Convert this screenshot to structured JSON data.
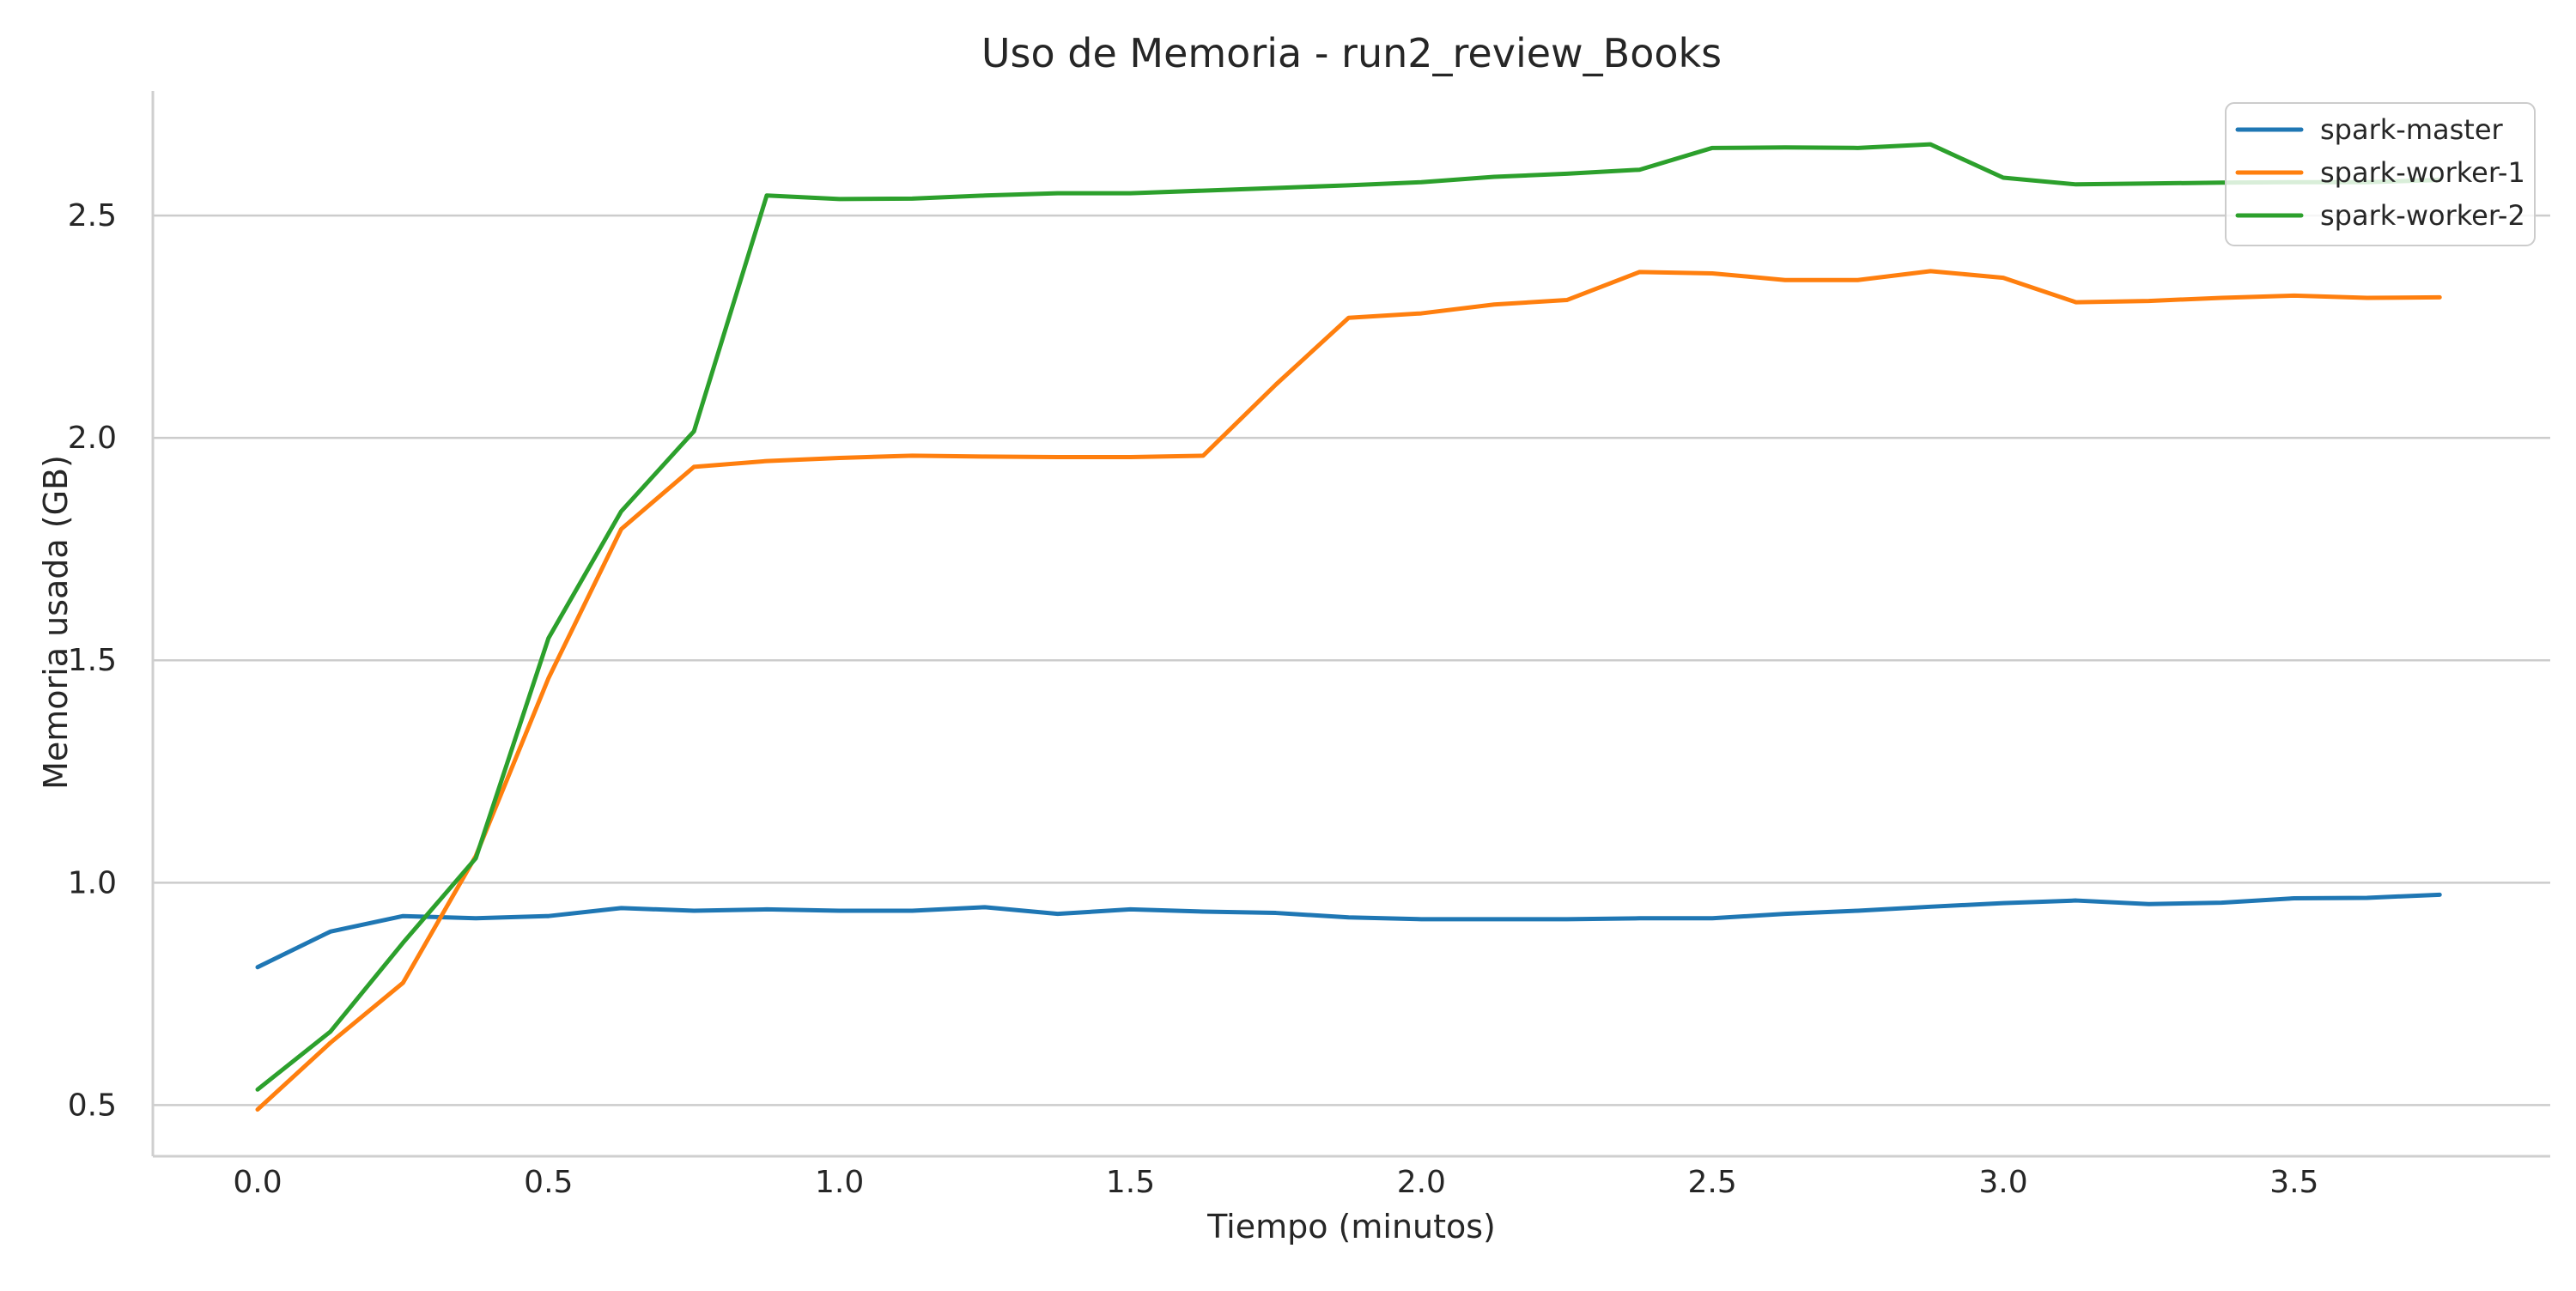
{
  "chart_data": {
    "type": "line",
    "title": "Uso de Memoria - run2_review_Books",
    "xlabel": "Tiempo (minutos)",
    "ylabel": "Memoria usada (GB)",
    "xlim": [
      -0.18,
      3.94
    ],
    "ylim": [
      0.385,
      2.78
    ],
    "xticks": [
      0.0,
      0.5,
      1.0,
      1.5,
      2.0,
      2.5,
      3.0,
      3.5
    ],
    "xtick_labels": [
      "0.0",
      "0.5",
      "1.0",
      "1.5",
      "2.0",
      "2.5",
      "3.0",
      "3.5"
    ],
    "yticks": [
      0.5,
      1.0,
      1.5,
      2.0,
      2.5
    ],
    "ytick_labels": [
      "0.5",
      "1.0",
      "1.5",
      "2.0",
      "2.5"
    ],
    "grid": "horizontal",
    "legend_position": "top-right",
    "x": [
      0.0,
      0.125,
      0.25,
      0.375,
      0.5,
      0.625,
      0.75,
      0.875,
      1.0,
      1.125,
      1.25,
      1.375,
      1.5,
      1.625,
      1.75,
      1.875,
      2.0,
      2.125,
      2.25,
      2.375,
      2.5,
      2.625,
      2.75,
      2.875,
      3.0,
      3.125,
      3.25,
      3.375,
      3.5,
      3.625,
      3.75
    ],
    "series": [
      {
        "name": "spark-master",
        "color": "#1f77b4",
        "values": [
          0.81,
          0.89,
          0.925,
          0.92,
          0.925,
          0.943,
          0.937,
          0.94,
          0.937,
          0.937,
          0.945,
          0.93,
          0.94,
          0.935,
          0.932,
          0.922,
          0.918,
          0.918,
          0.918,
          0.92,
          0.92,
          0.93,
          0.937,
          0.946,
          0.954,
          0.96,
          0.952,
          0.955,
          0.965,
          0.966,
          0.973
        ]
      },
      {
        "name": "spark-worker-1",
        "color": "#ff7f0e",
        "values": [
          0.49,
          0.64,
          0.775,
          1.06,
          1.46,
          1.795,
          1.935,
          1.948,
          1.955,
          1.96,
          1.958,
          1.957,
          1.957,
          1.96,
          2.12,
          2.27,
          2.28,
          2.3,
          2.31,
          2.373,
          2.37,
          2.355,
          2.355,
          2.375,
          2.36,
          2.305,
          2.308,
          2.315,
          2.32,
          2.315,
          2.316
        ]
      },
      {
        "name": "spark-worker-2",
        "color": "#2ca02c",
        "values": [
          0.535,
          0.665,
          0.865,
          1.055,
          1.55,
          1.835,
          2.015,
          2.545,
          2.537,
          2.538,
          2.545,
          2.55,
          2.55,
          2.556,
          2.562,
          2.568,
          2.575,
          2.587,
          2.594,
          2.603,
          2.652,
          2.653,
          2.652,
          2.66,
          2.585,
          2.57,
          2.572,
          2.574,
          2.575,
          2.575,
          2.58
        ]
      }
    ]
  }
}
